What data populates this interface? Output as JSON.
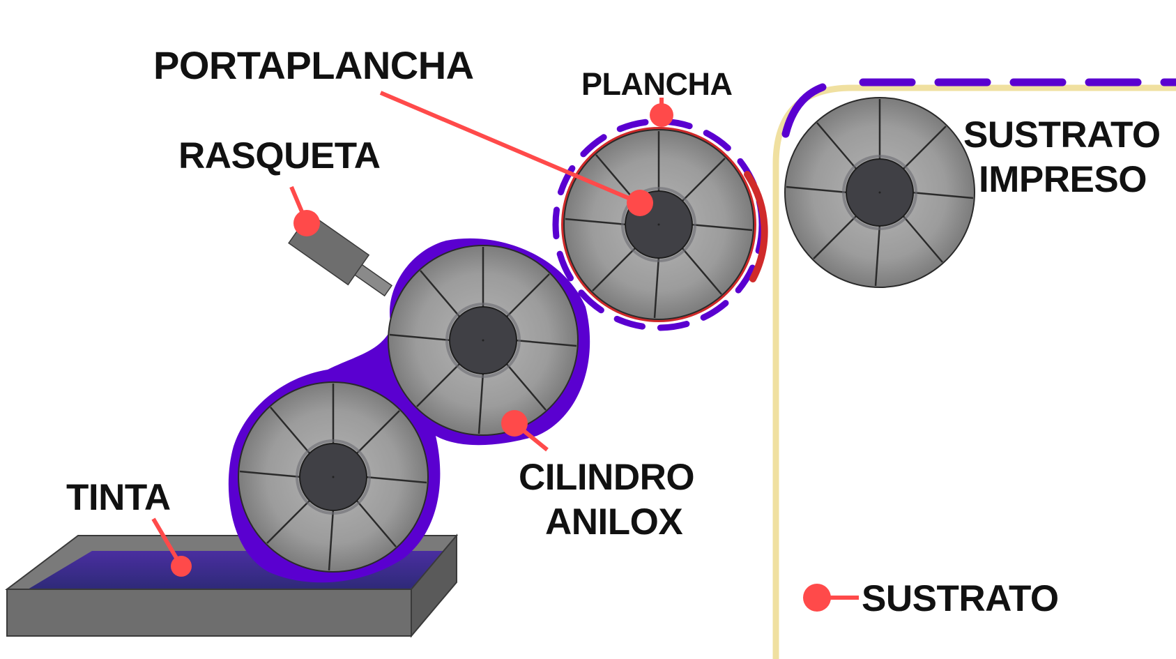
{
  "labels": {
    "portaplancha": "PORTAPLANCHA",
    "plancha": "PLANCHA",
    "rasqueta": "RASQUETA",
    "sustrato_impreso_line1": "SUSTRATO",
    "sustrato_impreso_line2": "IMPRESO",
    "cilindro_anilox_line1": "CILINDRO",
    "cilindro_anilox_line2": "ANILOX",
    "tinta": "TINTA",
    "sustrato": "SUSTRATO"
  },
  "colors": {
    "ink": "#5a00d0",
    "plate": "#d02a2a",
    "pointer": "#ff4a4a",
    "substrate": "#f0e0a0",
    "roller_face": "#9a9a9a",
    "roller_hub": "#404045",
    "tray": "#6e6e6e",
    "ink_in_tray": "#3b2d8e"
  },
  "icons": [
    "roller-icon",
    "doctor-blade-icon",
    "ink-tray-icon",
    "pointer-dot-icon"
  ]
}
